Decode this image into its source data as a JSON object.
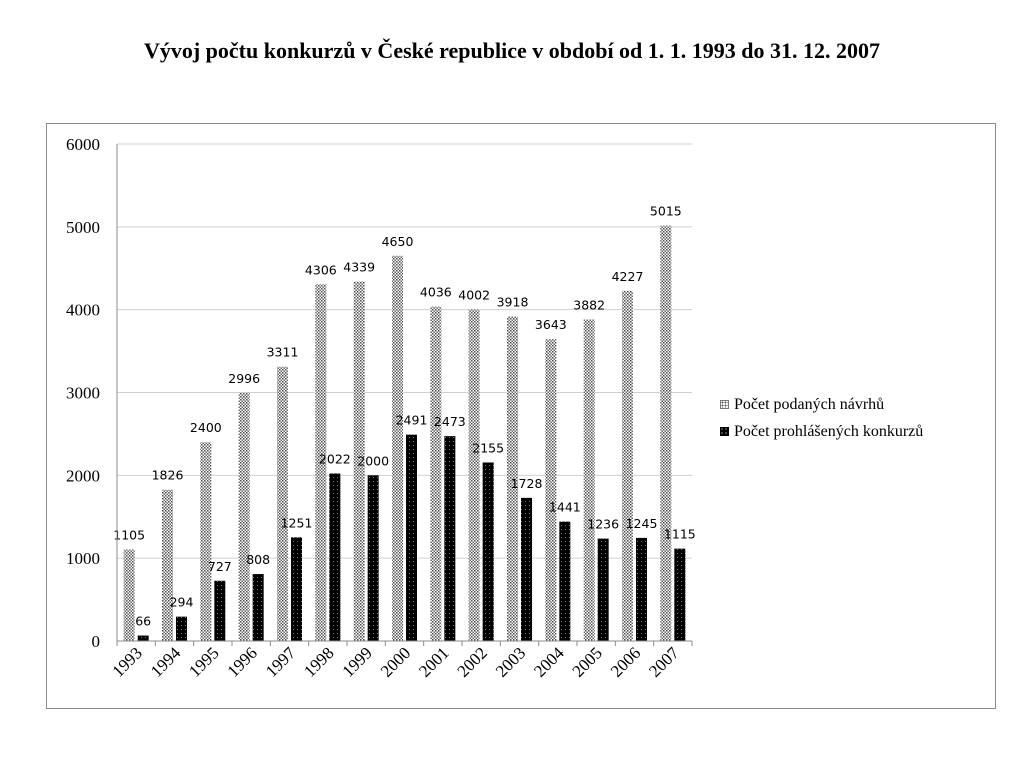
{
  "chart_data": {
    "type": "bar",
    "title": "Vývoj počtu konkurzů v České republice v období od 1. 1. 1993 do 31. 12. 2007",
    "categories": [
      "1993",
      "1994",
      "1995",
      "1996",
      "1997",
      "1998",
      "1999",
      "2000",
      "2001",
      "2002",
      "2003",
      "2004",
      "2005",
      "2006",
      "2007"
    ],
    "series": [
      {
        "name": "Počet podaných návrhů",
        "values": [
          1105,
          1826,
          2400,
          2996,
          3311,
          4306,
          4339,
          4650,
          4036,
          4002,
          3918,
          3643,
          3882,
          4227,
          5015
        ]
      },
      {
        "name": "Počet prohlášených konkurzů",
        "values": [
          66,
          294,
          727,
          808,
          1251,
          2022,
          2000,
          2491,
          2473,
          2155,
          1728,
          1441,
          1236,
          1245,
          1115
        ]
      }
    ],
    "ylim": [
      0,
      6000
    ],
    "yticks": [
      0,
      1000,
      2000,
      3000,
      4000,
      5000,
      6000
    ],
    "grid": true,
    "legend_position": "right",
    "xlabel": "",
    "ylabel": "",
    "colors": {
      "series1": "#d9d9d9",
      "series2": "#000000",
      "grid": "#d0d0d0"
    }
  }
}
